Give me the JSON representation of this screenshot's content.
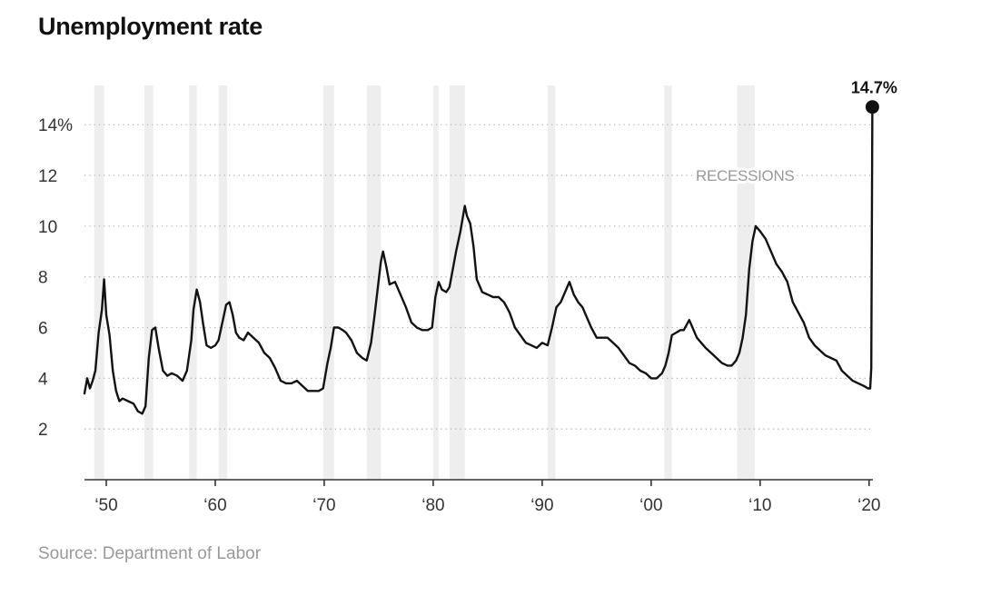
{
  "chart_data": {
    "type": "line",
    "title": "Unemployment rate",
    "source": "Source: Department of Labor",
    "xlabel": "",
    "ylabel": "",
    "xlim": [
      1948,
      2020.35
    ],
    "ylim": [
      0,
      15.8
    ],
    "grid": true,
    "y_ticks": [
      {
        "value": 14,
        "label": "14%"
      },
      {
        "value": 12,
        "label": "12"
      },
      {
        "value": 10,
        "label": "10"
      },
      {
        "value": 8,
        "label": "8"
      },
      {
        "value": 6,
        "label": "6"
      },
      {
        "value": 4,
        "label": "4"
      },
      {
        "value": 2,
        "label": "2"
      }
    ],
    "x_ticks": [
      {
        "value": 1950,
        "label": "‘50"
      },
      {
        "value": 1960,
        "label": "‘60"
      },
      {
        "value": 1970,
        "label": "‘70"
      },
      {
        "value": 1980,
        "label": "‘80"
      },
      {
        "value": 1990,
        "label": "‘90"
      },
      {
        "value": 2000,
        "label": "‘00"
      },
      {
        "value": 2010,
        "label": "‘10"
      },
      {
        "value": 2020,
        "label": "‘20"
      }
    ],
    "recessions": [
      [
        1948.9,
        1949.8
      ],
      [
        1953.5,
        1954.3
      ],
      [
        1957.6,
        1958.3
      ],
      [
        1960.3,
        1961.1
      ],
      [
        1969.9,
        1970.9
      ],
      [
        1973.9,
        1975.2
      ],
      [
        1980.0,
        1980.5
      ],
      [
        1981.5,
        1982.9
      ],
      [
        1990.5,
        1991.2
      ],
      [
        2001.2,
        2001.9
      ],
      [
        2007.9,
        2009.5
      ]
    ],
    "recessions_label": "RECESSIONS",
    "series": [
      {
        "name": "Unemployment rate",
        "x": [
          1948.0,
          1948.25,
          1948.5,
          1948.75,
          1949.0,
          1949.3,
          1949.6,
          1949.8,
          1950.0,
          1950.3,
          1950.6,
          1950.9,
          1951.2,
          1951.5,
          1952.0,
          1952.5,
          1952.9,
          1953.3,
          1953.6,
          1953.9,
          1954.2,
          1954.5,
          1954.8,
          1955.2,
          1955.6,
          1956.0,
          1956.5,
          1957.0,
          1957.4,
          1957.8,
          1958.0,
          1958.3,
          1958.6,
          1958.9,
          1959.2,
          1959.6,
          1960.0,
          1960.3,
          1960.7,
          1961.0,
          1961.3,
          1961.6,
          1961.9,
          1962.2,
          1962.6,
          1963.0,
          1963.5,
          1964.0,
          1964.5,
          1965.0,
          1965.5,
          1966.0,
          1966.5,
          1967.0,
          1967.5,
          1968.0,
          1968.5,
          1969.0,
          1969.5,
          1969.9,
          1970.3,
          1970.6,
          1970.9,
          1971.3,
          1971.7,
          1972.0,
          1972.5,
          1973.0,
          1973.5,
          1973.9,
          1974.3,
          1974.6,
          1974.9,
          1975.2,
          1975.4,
          1975.7,
          1976.0,
          1976.5,
          1977.0,
          1977.5,
          1978.0,
          1978.5,
          1979.0,
          1979.5,
          1979.9,
          1980.2,
          1980.5,
          1980.8,
          1981.2,
          1981.5,
          1981.8,
          1982.1,
          1982.5,
          1982.9,
          1983.1,
          1983.4,
          1983.7,
          1984.0,
          1984.5,
          1985.0,
          1985.5,
          1986.0,
          1986.5,
          1987.0,
          1987.5,
          1988.0,
          1988.5,
          1989.0,
          1989.5,
          1990.0,
          1990.5,
          1990.9,
          1991.3,
          1991.7,
          1992.1,
          1992.5,
          1992.9,
          1993.3,
          1993.7,
          1994.0,
          1994.5,
          1995.0,
          1995.5,
          1996.0,
          1996.5,
          1997.0,
          1997.5,
          1998.0,
          1998.5,
          1999.0,
          1999.5,
          2000.0,
          2000.5,
          2001.0,
          2001.3,
          2001.6,
          2001.9,
          2002.3,
          2002.7,
          2003.0,
          2003.5,
          2003.8,
          2004.2,
          2004.6,
          2005.0,
          2005.5,
          2006.0,
          2006.5,
          2007.0,
          2007.4,
          2007.8,
          2008.1,
          2008.4,
          2008.7,
          2009.0,
          2009.3,
          2009.6,
          2009.8,
          2010.0,
          2010.5,
          2011.0,
          2011.5,
          2012.0,
          2012.5,
          2013.0,
          2013.5,
          2014.0,
          2014.5,
          2015.0,
          2015.5,
          2016.0,
          2016.5,
          2017.0,
          2017.5,
          2018.0,
          2018.5,
          2019.0,
          2019.5,
          2019.9,
          2020.1,
          2020.2,
          2020.3
        ],
        "values": [
          3.4,
          4.0,
          3.6,
          3.9,
          4.3,
          5.8,
          6.7,
          7.9,
          6.5,
          5.7,
          4.3,
          3.5,
          3.1,
          3.2,
          3.1,
          3.0,
          2.7,
          2.6,
          2.9,
          4.8,
          5.9,
          6.0,
          5.2,
          4.3,
          4.1,
          4.2,
          4.1,
          3.9,
          4.3,
          5.5,
          6.7,
          7.5,
          7.0,
          6.1,
          5.3,
          5.2,
          5.3,
          5.5,
          6.3,
          6.9,
          7.0,
          6.5,
          5.8,
          5.6,
          5.5,
          5.8,
          5.6,
          5.4,
          5.0,
          4.8,
          4.4,
          3.9,
          3.8,
          3.8,
          3.9,
          3.7,
          3.5,
          3.5,
          3.5,
          3.6,
          4.6,
          5.2,
          6.0,
          6.0,
          5.9,
          5.8,
          5.5,
          5.0,
          4.8,
          4.7,
          5.4,
          6.4,
          7.5,
          8.6,
          9.0,
          8.4,
          7.7,
          7.8,
          7.3,
          6.8,
          6.2,
          6.0,
          5.9,
          5.9,
          6.0,
          7.2,
          7.8,
          7.5,
          7.4,
          7.6,
          8.3,
          9.0,
          9.8,
          10.8,
          10.4,
          10.1,
          9.2,
          7.9,
          7.4,
          7.3,
          7.2,
          7.2,
          7.0,
          6.6,
          6.0,
          5.7,
          5.4,
          5.3,
          5.2,
          5.4,
          5.3,
          6.0,
          6.8,
          7.0,
          7.4,
          7.8,
          7.3,
          7.0,
          6.8,
          6.5,
          6.0,
          5.6,
          5.6,
          5.6,
          5.4,
          5.2,
          4.9,
          4.6,
          4.5,
          4.3,
          4.2,
          4.0,
          4.0,
          4.2,
          4.5,
          5.0,
          5.7,
          5.8,
          5.9,
          5.9,
          6.3,
          6.0,
          5.6,
          5.4,
          5.2,
          5.0,
          4.8,
          4.6,
          4.5,
          4.5,
          4.7,
          5.0,
          5.6,
          6.5,
          8.3,
          9.4,
          10.0,
          9.9,
          9.8,
          9.5,
          9.0,
          8.5,
          8.2,
          7.8,
          7.0,
          6.6,
          6.2,
          5.6,
          5.3,
          5.1,
          4.9,
          4.8,
          4.7,
          4.3,
          4.1,
          3.9,
          3.8,
          3.7,
          3.6,
          3.6,
          4.4,
          14.7
        ]
      }
    ],
    "annotation": {
      "label": "14.7%",
      "x": 2020.3,
      "y": 14.7
    }
  }
}
